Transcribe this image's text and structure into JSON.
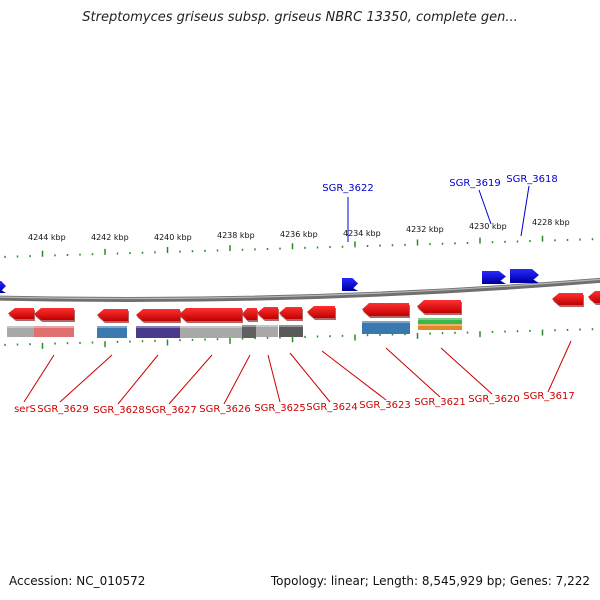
{
  "title": "Streptomyces griseus subsp. griseus NBRC 13350, complete gen...",
  "footer": {
    "accession": "Accession: NC_010572",
    "summary": "Topology: linear; Length: 8,545,929 bp; Genes: 7,222"
  },
  "colors": {
    "forward_gene": "#0000ee",
    "reverse_gene": "#ee0000",
    "forward_label": "#0000cc",
    "reverse_label": "#cc0000",
    "tick": "#2a8a2a",
    "backbone": "#808080"
  },
  "scale_labels": [
    "4244 kbp",
    "4242 kbp",
    "4240 kbp",
    "4238 kbp",
    "4236 kbp",
    "4234 kbp",
    "4232 kbp",
    "4230 kbp",
    "4228 kbp"
  ],
  "forward_gene_labels": [
    "SGR_3622",
    "SGR_3619",
    "SGR_3618"
  ],
  "reverse_gene_labels": [
    "serS",
    "SGR_3629",
    "SGR_3628",
    "SGR_3627",
    "SGR_3626",
    "SGR_3625",
    "SGR_3624",
    "SGR_3623",
    "SGR_3621",
    "SGR_3620",
    "SGR_3617"
  ]
}
